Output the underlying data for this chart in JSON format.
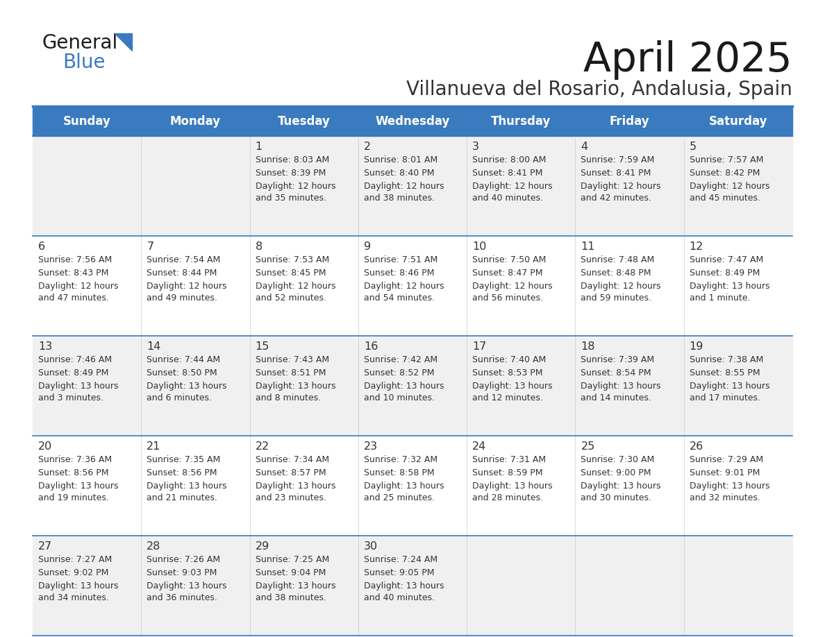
{
  "title": "April 2025",
  "subtitle": "Villanueva del Rosario, Andalusia, Spain",
  "header_bg": "#3a7abf",
  "header_text": "#ffffff",
  "cell_bg_odd": "#f0f0f0",
  "cell_bg_even": "#ffffff",
  "cell_text": "#333333",
  "grid_color": "#3a7abf",
  "days_of_week": [
    "Sunday",
    "Monday",
    "Tuesday",
    "Wednesday",
    "Thursday",
    "Friday",
    "Saturday"
  ],
  "weeks": [
    [
      {
        "day": "",
        "sunrise": "",
        "sunset": "",
        "daylight": ""
      },
      {
        "day": "",
        "sunrise": "",
        "sunset": "",
        "daylight": ""
      },
      {
        "day": "1",
        "sunrise": "Sunrise: 8:03 AM",
        "sunset": "Sunset: 8:39 PM",
        "daylight": "Daylight: 12 hours\nand 35 minutes."
      },
      {
        "day": "2",
        "sunrise": "Sunrise: 8:01 AM",
        "sunset": "Sunset: 8:40 PM",
        "daylight": "Daylight: 12 hours\nand 38 minutes."
      },
      {
        "day": "3",
        "sunrise": "Sunrise: 8:00 AM",
        "sunset": "Sunset: 8:41 PM",
        "daylight": "Daylight: 12 hours\nand 40 minutes."
      },
      {
        "day": "4",
        "sunrise": "Sunrise: 7:59 AM",
        "sunset": "Sunset: 8:41 PM",
        "daylight": "Daylight: 12 hours\nand 42 minutes."
      },
      {
        "day": "5",
        "sunrise": "Sunrise: 7:57 AM",
        "sunset": "Sunset: 8:42 PM",
        "daylight": "Daylight: 12 hours\nand 45 minutes."
      }
    ],
    [
      {
        "day": "6",
        "sunrise": "Sunrise: 7:56 AM",
        "sunset": "Sunset: 8:43 PM",
        "daylight": "Daylight: 12 hours\nand 47 minutes."
      },
      {
        "day": "7",
        "sunrise": "Sunrise: 7:54 AM",
        "sunset": "Sunset: 8:44 PM",
        "daylight": "Daylight: 12 hours\nand 49 minutes."
      },
      {
        "day": "8",
        "sunrise": "Sunrise: 7:53 AM",
        "sunset": "Sunset: 8:45 PM",
        "daylight": "Daylight: 12 hours\nand 52 minutes."
      },
      {
        "day": "9",
        "sunrise": "Sunrise: 7:51 AM",
        "sunset": "Sunset: 8:46 PM",
        "daylight": "Daylight: 12 hours\nand 54 minutes."
      },
      {
        "day": "10",
        "sunrise": "Sunrise: 7:50 AM",
        "sunset": "Sunset: 8:47 PM",
        "daylight": "Daylight: 12 hours\nand 56 minutes."
      },
      {
        "day": "11",
        "sunrise": "Sunrise: 7:48 AM",
        "sunset": "Sunset: 8:48 PM",
        "daylight": "Daylight: 12 hours\nand 59 minutes."
      },
      {
        "day": "12",
        "sunrise": "Sunrise: 7:47 AM",
        "sunset": "Sunset: 8:49 PM",
        "daylight": "Daylight: 13 hours\nand 1 minute."
      }
    ],
    [
      {
        "day": "13",
        "sunrise": "Sunrise: 7:46 AM",
        "sunset": "Sunset: 8:49 PM",
        "daylight": "Daylight: 13 hours\nand 3 minutes."
      },
      {
        "day": "14",
        "sunrise": "Sunrise: 7:44 AM",
        "sunset": "Sunset: 8:50 PM",
        "daylight": "Daylight: 13 hours\nand 6 minutes."
      },
      {
        "day": "15",
        "sunrise": "Sunrise: 7:43 AM",
        "sunset": "Sunset: 8:51 PM",
        "daylight": "Daylight: 13 hours\nand 8 minutes."
      },
      {
        "day": "16",
        "sunrise": "Sunrise: 7:42 AM",
        "sunset": "Sunset: 8:52 PM",
        "daylight": "Daylight: 13 hours\nand 10 minutes."
      },
      {
        "day": "17",
        "sunrise": "Sunrise: 7:40 AM",
        "sunset": "Sunset: 8:53 PM",
        "daylight": "Daylight: 13 hours\nand 12 minutes."
      },
      {
        "day": "18",
        "sunrise": "Sunrise: 7:39 AM",
        "sunset": "Sunset: 8:54 PM",
        "daylight": "Daylight: 13 hours\nand 14 minutes."
      },
      {
        "day": "19",
        "sunrise": "Sunrise: 7:38 AM",
        "sunset": "Sunset: 8:55 PM",
        "daylight": "Daylight: 13 hours\nand 17 minutes."
      }
    ],
    [
      {
        "day": "20",
        "sunrise": "Sunrise: 7:36 AM",
        "sunset": "Sunset: 8:56 PM",
        "daylight": "Daylight: 13 hours\nand 19 minutes."
      },
      {
        "day": "21",
        "sunrise": "Sunrise: 7:35 AM",
        "sunset": "Sunset: 8:56 PM",
        "daylight": "Daylight: 13 hours\nand 21 minutes."
      },
      {
        "day": "22",
        "sunrise": "Sunrise: 7:34 AM",
        "sunset": "Sunset: 8:57 PM",
        "daylight": "Daylight: 13 hours\nand 23 minutes."
      },
      {
        "day": "23",
        "sunrise": "Sunrise: 7:32 AM",
        "sunset": "Sunset: 8:58 PM",
        "daylight": "Daylight: 13 hours\nand 25 minutes."
      },
      {
        "day": "24",
        "sunrise": "Sunrise: 7:31 AM",
        "sunset": "Sunset: 8:59 PM",
        "daylight": "Daylight: 13 hours\nand 28 minutes."
      },
      {
        "day": "25",
        "sunrise": "Sunrise: 7:30 AM",
        "sunset": "Sunset: 9:00 PM",
        "daylight": "Daylight: 13 hours\nand 30 minutes."
      },
      {
        "day": "26",
        "sunrise": "Sunrise: 7:29 AM",
        "sunset": "Sunset: 9:01 PM",
        "daylight": "Daylight: 13 hours\nand 32 minutes."
      }
    ],
    [
      {
        "day": "27",
        "sunrise": "Sunrise: 7:27 AM",
        "sunset": "Sunset: 9:02 PM",
        "daylight": "Daylight: 13 hours\nand 34 minutes."
      },
      {
        "day": "28",
        "sunrise": "Sunrise: 7:26 AM",
        "sunset": "Sunset: 9:03 PM",
        "daylight": "Daylight: 13 hours\nand 36 minutes."
      },
      {
        "day": "29",
        "sunrise": "Sunrise: 7:25 AM",
        "sunset": "Sunset: 9:04 PM",
        "daylight": "Daylight: 13 hours\nand 38 minutes."
      },
      {
        "day": "30",
        "sunrise": "Sunrise: 7:24 AM",
        "sunset": "Sunset: 9:05 PM",
        "daylight": "Daylight: 13 hours\nand 40 minutes."
      },
      {
        "day": "",
        "sunrise": "",
        "sunset": "",
        "daylight": ""
      },
      {
        "day": "",
        "sunrise": "",
        "sunset": "",
        "daylight": ""
      },
      {
        "day": "",
        "sunrise": "",
        "sunset": "",
        "daylight": ""
      }
    ]
  ]
}
